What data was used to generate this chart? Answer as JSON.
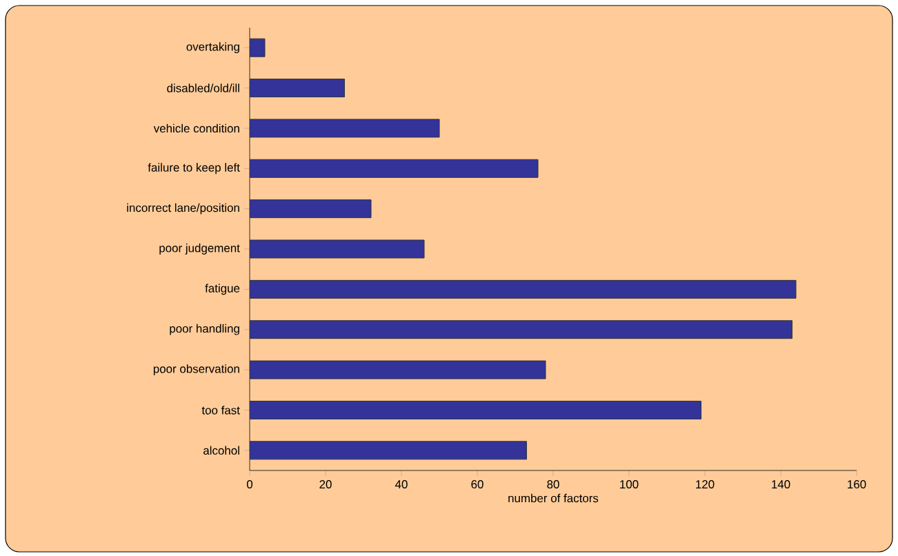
{
  "chart_data": {
    "type": "bar",
    "orientation": "horizontal",
    "xlabel": "number of factors",
    "categories": [
      "overtaking",
      "disabled/old/ill",
      "vehicle condition",
      "failure to keep left",
      "incorrect lane/position",
      "poor judgement",
      "fatigue",
      "poor handling",
      "poor observation",
      "too fast",
      "alcohol"
    ],
    "values": [
      4,
      25,
      50,
      76,
      32,
      46,
      144,
      143,
      78,
      119,
      73
    ],
    "color": "#333399",
    "xlim": [
      0,
      160
    ],
    "xticks": [
      0,
      20,
      40,
      60,
      80,
      100,
      120,
      140,
      160
    ]
  }
}
